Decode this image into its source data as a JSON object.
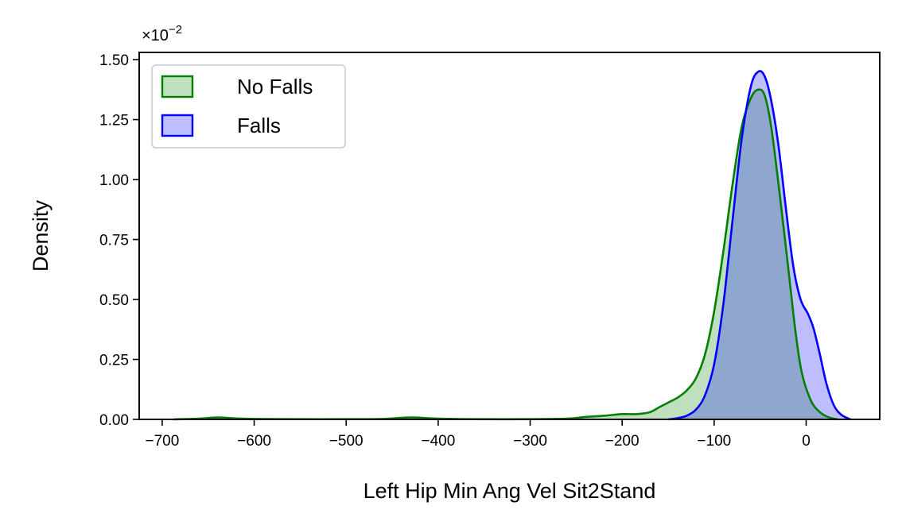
{
  "chart_data": {
    "type": "area",
    "xlabel": "Left Hip Min Ang Vel Sit2Stand",
    "ylabel": "Density",
    "y_offset_label": "×10",
    "y_offset_exponent": "−2",
    "xlim": [
      -725,
      80
    ],
    "ylim": [
      0,
      1.53
    ],
    "x_ticks": [
      -700,
      -600,
      -500,
      -400,
      -300,
      -200,
      -100,
      0
    ],
    "x_tick_labels": [
      "−700",
      "−600",
      "−500",
      "−400",
      "−300",
      "−200",
      "−100",
      "0"
    ],
    "y_ticks": [
      0,
      0.25,
      0.5,
      0.75,
      1.0,
      1.25,
      1.5
    ],
    "y_tick_labels": [
      "0.00",
      "0.25",
      "0.50",
      "0.75",
      "1.00",
      "1.25",
      "1.50"
    ],
    "legend_position": "top-left",
    "grid": false,
    "series": [
      {
        "name": "No Falls",
        "line_color": "#008000",
        "fill_color": "#008000",
        "fill_opacity": 0.25,
        "points": [
          [
            -688,
            0.0
          ],
          [
            -660,
            0.003
          ],
          [
            -640,
            0.008
          ],
          [
            -620,
            0.004
          ],
          [
            -600,
            0.002
          ],
          [
            -560,
            0.001
          ],
          [
            -500,
            0.001
          ],
          [
            -460,
            0.002
          ],
          [
            -430,
            0.008
          ],
          [
            -400,
            0.003
          ],
          [
            -360,
            0.001
          ],
          [
            -300,
            0.001
          ],
          [
            -260,
            0.003
          ],
          [
            -240,
            0.01
          ],
          [
            -220,
            0.015
          ],
          [
            -200,
            0.022
          ],
          [
            -185,
            0.022
          ],
          [
            -170,
            0.03
          ],
          [
            -160,
            0.05
          ],
          [
            -150,
            0.07
          ],
          [
            -140,
            0.09
          ],
          [
            -130,
            0.12
          ],
          [
            -120,
            0.17
          ],
          [
            -110,
            0.27
          ],
          [
            -100,
            0.45
          ],
          [
            -90,
            0.7
          ],
          [
            -80,
            0.98
          ],
          [
            -70,
            1.22
          ],
          [
            -60,
            1.34
          ],
          [
            -52,
            1.375
          ],
          [
            -45,
            1.35
          ],
          [
            -38,
            1.22
          ],
          [
            -30,
            0.98
          ],
          [
            -20,
            0.65
          ],
          [
            -12,
            0.38
          ],
          [
            -5,
            0.2
          ],
          [
            5,
            0.08
          ],
          [
            15,
            0.03
          ],
          [
            25,
            0.008
          ],
          [
            35,
            0.0
          ]
        ]
      },
      {
        "name": "Falls",
        "line_color": "#0000ff",
        "fill_color": "#0000ff",
        "fill_opacity": 0.25,
        "points": [
          [
            -150,
            0.0
          ],
          [
            -140,
            0.005
          ],
          [
            -130,
            0.015
          ],
          [
            -120,
            0.04
          ],
          [
            -110,
            0.1
          ],
          [
            -100,
            0.23
          ],
          [
            -90,
            0.48
          ],
          [
            -80,
            0.83
          ],
          [
            -70,
            1.17
          ],
          [
            -60,
            1.39
          ],
          [
            -52,
            1.45
          ],
          [
            -45,
            1.43
          ],
          [
            -38,
            1.33
          ],
          [
            -30,
            1.14
          ],
          [
            -22,
            0.88
          ],
          [
            -14,
            0.64
          ],
          [
            -6,
            0.5
          ],
          [
            2,
            0.44
          ],
          [
            8,
            0.38
          ],
          [
            15,
            0.27
          ],
          [
            22,
            0.15
          ],
          [
            30,
            0.06
          ],
          [
            38,
            0.02
          ],
          [
            48,
            0.0
          ]
        ]
      }
    ]
  }
}
